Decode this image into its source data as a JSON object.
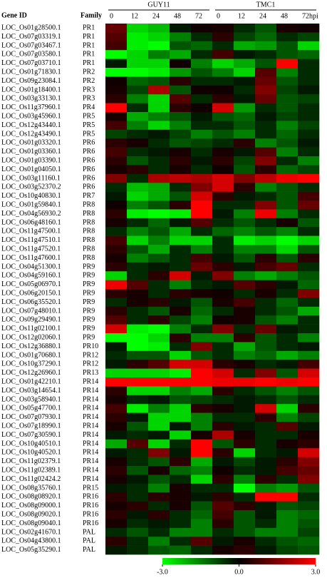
{
  "chart_data": {
    "type": "heatmap",
    "row_header": "Gene ID",
    "family_header": "Family",
    "groups": [
      {
        "name": "GUY11",
        "columns": [
          "0",
          "12",
          "24",
          "48",
          "72"
        ]
      },
      {
        "name": "TMC1",
        "columns": [
          "0",
          "12",
          "24",
          "48",
          "72hpi"
        ]
      }
    ],
    "genes": [
      "LOC_Os01g28500.1",
      "LOC_Os07g03319.1",
      "LOC_Os07g03467.1",
      "LOC_Os07g03580.1",
      "LOC_Os07g03710.1",
      "LOC_Os01g71830.1",
      "LOC_Os09g23084.1",
      "LOC_Os01g18400.1",
      "LOC_Os03g33130.1",
      "LOC_Os11g37960.1",
      "LOC_Os03g45960.1",
      "LOC_Os12g43440.1",
      "LOC_Os12g43490.1",
      "LOC_Os01g03320.1",
      "LOC_Os01g03360.1",
      "LOC_Os01g03390.1",
      "LOC_Os01g04050.1",
      "LOC_Os03g11160.1",
      "LOC_Os03g52370.2",
      "LOC_Os10g40830.1",
      "LOC_Os01g59840.1",
      "LOC_Os04g56930.2",
      "LOC_Os06g48160.1",
      "LOC_Os11g47500.1",
      "LOC_Os11g47510.1",
      "LOC_Os11g47520.1",
      "LOC_Os11g47600.1",
      "LOC_Os04g51300.1",
      "LOC_Os04g59160.1",
      "LOC_Os05g06970.1",
      "LOC_Os06g20150.1",
      "LOC_Os06g35520.1",
      "LOC_Os07g48010.1",
      "LOC_Os09g29490.1",
      "LOC_Os11g02100.1",
      "LOC_Os12g02060.1",
      "LOC_Os12g36880.1",
      "LOC_Os01g70680.1",
      "LOC_Os10g37290.1",
      "LOC_Os12g26960.1",
      "LOC_Os01g42210.1",
      "LOC_Os03g14654.1",
      "LOC_Os03g58940.1",
      "LOC_Os05g47700.1",
      "LOC_Os07g07930.1",
      "LOC_Os07g18990.1",
      "LOC_Os07g30590.1",
      "LOC_Os10g40510.1",
      "LOC_Os10g40520.1",
      "LOC_Os11g02379.1",
      "LOC_Os11g02389.1",
      "LOC_Os11g02424.2",
      "LOC_Os08g35760.1",
      "LOC_Os08g08920.1",
      "LOC_Os08g09000.1",
      "LOC_Os08g09020.1",
      "LOC_Os08g09040.1",
      "LOC_Os02g41670.1",
      "LOC_Os04g43800.1",
      "LOC_Os05g35290.1"
    ],
    "families": [
      "PR1",
      "PR1",
      "PR1",
      "PR1",
      "PR1",
      "PR2",
      "PR2",
      "PR3",
      "PR3",
      "PR4",
      "PR5",
      "PR5",
      "PR5",
      "PR6",
      "PR6",
      "PR6",
      "PR6",
      "PR6",
      "PR6",
      "PR7",
      "PR8",
      "PR8",
      "PR8",
      "PR8",
      "PR8",
      "PR8",
      "PR8",
      "PR9",
      "PR9",
      "PR9",
      "PR9",
      "PR9",
      "PR9",
      "PR9",
      "PR9",
      "PR9",
      "PR10",
      "PR12",
      "PR12",
      "PR13",
      "PR14",
      "PR14",
      "PR14",
      "PR14",
      "PR14",
      "PR14",
      "PR14",
      "PR14",
      "PR14",
      "PR14",
      "PR14",
      "PR14",
      "PR15",
      "PR16",
      "PR16",
      "PR16",
      "PR16",
      "PAL",
      "PAL",
      "PAL"
    ],
    "values": [
      [
        1.2,
        -2.5,
        -2.2,
        -0.3,
        0.2,
        0.3,
        -0.5,
        -1,
        0.3,
        0.2
      ],
      [
        1.0,
        -2.8,
        -2.5,
        -1.5,
        -0.5,
        0.5,
        -0.8,
        -1.2,
        -0.5,
        -0.8
      ],
      [
        0.8,
        -2.8,
        -3,
        -1,
        -1.2,
        -0.5,
        -2,
        -1.8,
        -1,
        -2.5
      ],
      [
        -3,
        -2.5,
        -1.5,
        -2,
        -0.5,
        0.8,
        -0.3,
        -0.5,
        -1,
        -1.2
      ],
      [
        -0.3,
        -2.5,
        -2.5,
        0.2,
        -1.5,
        -2.5,
        -2,
        -1,
        3,
        -0.5
      ],
      [
        -3,
        -3,
        -2.8,
        -1.8,
        -1,
        -1.5,
        -2.5,
        1,
        -1.5,
        -0.5
      ],
      [
        0.2,
        -1.2,
        -1,
        0.5,
        -0.5,
        -0.5,
        -0.3,
        1.2,
        -1,
        -0.5
      ],
      [
        0.3,
        -0.8,
        2,
        -1,
        0.2,
        0.2,
        -0.5,
        1.5,
        -0.8,
        -0.3
      ],
      [
        0.5,
        -1.5,
        -2.5,
        1,
        -0.5,
        0.5,
        -0.3,
        1.2,
        -1,
        -0.8
      ],
      [
        3,
        -0.5,
        -2.5,
        0.5,
        0.2,
        2.5,
        -1.8,
        -0.5,
        -1,
        -0.5
      ],
      [
        0.3,
        -2,
        -1.5,
        -1,
        -0.3,
        -1,
        -1.2,
        -0.3,
        -0.8,
        -0.5
      ],
      [
        0.8,
        -1.5,
        -2.5,
        -1.5,
        -0.5,
        -0.5,
        -1,
        -0.5,
        -1.5,
        -0.8
      ],
      [
        -0.8,
        -0.5,
        -0.3,
        -0.8,
        -1.5,
        -1,
        -1.5,
        -0.5,
        -1.2,
        -0.5
      ],
      [
        0.5,
        0.3,
        -0.5,
        -1,
        -0.8,
        -0.5,
        0.5,
        -1.5,
        -1,
        -0.3
      ],
      [
        0.8,
        -0.5,
        -0.3,
        0.3,
        -0.5,
        0.3,
        -0.3,
        1,
        -1.5,
        -0.5
      ],
      [
        0.5,
        -1,
        -0.5,
        0.5,
        -0.3,
        0.5,
        -0.8,
        1.5,
        -0.5,
        -1.5
      ],
      [
        0.3,
        0.5,
        -0.5,
        0.3,
        -0.5,
        0.2,
        -1,
        0.5,
        -1.2,
        -0.8
      ],
      [
        1.5,
        -0.5,
        2,
        2.2,
        2,
        2.5,
        1.5,
        2.2,
        2.8,
        3
      ],
      [
        -0.5,
        -2.2,
        -2,
        -0.5,
        1.5,
        2.5,
        0.5,
        -1.5,
        -1,
        -0.5
      ],
      [
        -0.3,
        -2.5,
        -2,
        -1,
        2.5,
        0.5,
        -0.3,
        -0.5,
        -1,
        0.8
      ],
      [
        0.2,
        -1.5,
        -1,
        0.5,
        3,
        -0.5,
        -0.5,
        1.5,
        -1,
        1.2
      ],
      [
        0.5,
        -2.8,
        -3,
        -2.8,
        3,
        -0.3,
        -1.5,
        2.8,
        -1.5,
        -0.5
      ],
      [
        0.3,
        -0.5,
        -1.2,
        -0.3,
        1,
        -0.5,
        -1,
        -0.5,
        0.3,
        -1
      ],
      [
        -0.5,
        -1.5,
        -1,
        -2,
        -0.5,
        -1.2,
        -1.5,
        -1,
        -1.5,
        -0.5
      ],
      [
        0.8,
        -2.5,
        -1.5,
        -2.5,
        -2.5,
        -0.5,
        -2.8,
        -2.5,
        -3,
        -2.5
      ],
      [
        0.5,
        -1,
        -2,
        -0.5,
        -1.5,
        -0.5,
        -1.5,
        -1.5,
        -2.5,
        -1
      ],
      [
        0.3,
        -1.5,
        -1,
        -0.5,
        0.8,
        -0.3,
        -1,
        0.5,
        -1,
        0.5
      ],
      [
        0.5,
        -0.5,
        -0.3,
        -0.5,
        1.2,
        0.5,
        -0.3,
        0.8,
        1.2,
        -0.5
      ],
      [
        -2.5,
        -0.5,
        0.5,
        2.5,
        -0.3,
        1.5,
        -1.5,
        -2,
        -1.5,
        -1
      ],
      [
        2.8,
        1,
        -0.5,
        -1.5,
        -0.5,
        -0.3,
        1,
        0.5,
        -0.3,
        -1.2
      ],
      [
        0.5,
        0.3,
        -0.5,
        0.5,
        0.3,
        0.2,
        -0.5,
        0.3,
        -0.5,
        1.5
      ],
      [
        -0.5,
        0.3,
        0.5,
        -0.3,
        -1,
        0.3,
        0.8,
        -0.5,
        -1.2,
        -0.5
      ],
      [
        0.5,
        -0.5,
        -1,
        0.3,
        -1.2,
        -0.5,
        0.3,
        -0.5,
        -1,
        -2
      ],
      [
        1,
        -0.5,
        0.5,
        -0.8,
        -1.5,
        0.2,
        0.3,
        -1,
        -1.5,
        -0.5
      ],
      [
        2.5,
        -2.8,
        -3,
        -1.5,
        -0.5,
        1.5,
        -0.5,
        1.2,
        -0.3,
        -0.5
      ],
      [
        -3,
        -3,
        -2.5,
        0.5,
        -1.5,
        -1.5,
        0.5,
        -1,
        -0.5,
        -1.5
      ],
      [
        -0.3,
        -3,
        -2.8,
        -0.5,
        1.5,
        -0.5,
        -2,
        -1,
        -0.5,
        -0.3
      ],
      [
        -0.5,
        -1,
        -1,
        -2.5,
        -1,
        -0.5,
        -1.5,
        -1.2,
        -2,
        -1.5
      ],
      [
        -0.3,
        0.5,
        1,
        2.5,
        2.5,
        0.5,
        0.3,
        -0.5,
        -0.3,
        0.8
      ],
      [
        -2.5,
        -2.5,
        -2.5,
        -2.8,
        3,
        2.5,
        -0.5,
        1.5,
        -1,
        2.5
      ],
      [
        3,
        3,
        3,
        3,
        3,
        2.8,
        2.8,
        3,
        2.8,
        3
      ],
      [
        0.5,
        -2.5,
        -2.5,
        -1.5,
        -2,
        0.5,
        -0.5,
        -1,
        -1.5,
        -1
      ],
      [
        0.3,
        -0.5,
        -0.3,
        -1,
        -0.8,
        -0.5,
        -0.3,
        -0.5,
        -1,
        -0.5
      ],
      [
        0.8,
        -2.8,
        -1.5,
        -2.5,
        0.5,
        0.3,
        -0.3,
        2.5,
        -2.5,
        0.5
      ],
      [
        0.5,
        -0.3,
        -2.5,
        -2.5,
        -1.5,
        -0.5,
        -0.5,
        0.5,
        -1.5,
        -0.8
      ],
      [
        0.3,
        -1,
        -2.5,
        -0.3,
        -1.5,
        0.5,
        -0.3,
        -0.5,
        1,
        -0.3
      ],
      [
        -0.3,
        -0.5,
        -0.3,
        -2.5,
        0.3,
        2,
        0.3,
        -0.5,
        -0.5,
        0.3
      ],
      [
        -2,
        1,
        -2.5,
        -0.5,
        3,
        -1,
        0.5,
        -0.5,
        0.3,
        0.5
      ],
      [
        -0.3,
        -0.5,
        1.5,
        -0.3,
        3,
        0.5,
        -2.5,
        -0.5,
        -0.3,
        2.5
      ],
      [
        0.3,
        -0.5,
        -1,
        0.5,
        -2,
        -0.3,
        -0.8,
        -0.3,
        0.5,
        1.5
      ],
      [
        0.5,
        -1,
        0.3,
        -1.2,
        -1.5,
        0.2,
        -0.5,
        -0.3,
        0.8,
        1.2
      ],
      [
        0.3,
        -0.3,
        -1,
        -0.5,
        -2.5,
        0.5,
        -1.5,
        0.5,
        -0.5,
        1.5
      ],
      [
        -0.3,
        -0.5,
        -1.5,
        0.3,
        -0.5,
        -0.5,
        -3,
        -1.5,
        -1.8,
        -1
      ],
      [
        0.5,
        -0.5,
        0.5,
        0.3,
        -0.3,
        0.5,
        -0.5,
        3,
        3,
        -0.5
      ],
      [
        0.3,
        0.5,
        -0.5,
        0.3,
        -1,
        1,
        0.5,
        -0.3,
        -1,
        -0.8
      ],
      [
        0.5,
        -0.3,
        0.5,
        -0.5,
        -1.2,
        0.8,
        -1,
        -0.3,
        -1.5,
        -1.2
      ],
      [
        0.3,
        -0.5,
        -0.3,
        -0.5,
        -1.5,
        0.5,
        -1,
        -0.5,
        -1.5,
        -1
      ],
      [
        -0.5,
        -1,
        -0.5,
        -1.5,
        -1.5,
        -0.5,
        -1,
        -1.5,
        -1.5,
        -0.8
      ],
      [
        0.5,
        -0.5,
        -1.5,
        -0.5,
        1,
        -0.3,
        0.3,
        -0.5,
        -1,
        -1.2
      ],
      [
        -0.3,
        -0.5,
        -1,
        -1.2,
        -0.5,
        0.3,
        0.5,
        -0.3,
        -0.8,
        -1
      ]
    ],
    "zlim": [
      -3,
      3
    ],
    "colorbar_ticks": [
      {
        "value": -3,
        "label": "-3.0"
      },
      {
        "value": 0,
        "label": "0.0"
      },
      {
        "value": 3,
        "label": "3.0"
      }
    ],
    "colors": {
      "low": "#00ff00",
      "mid": "#000000",
      "high": "#ff0000"
    }
  }
}
